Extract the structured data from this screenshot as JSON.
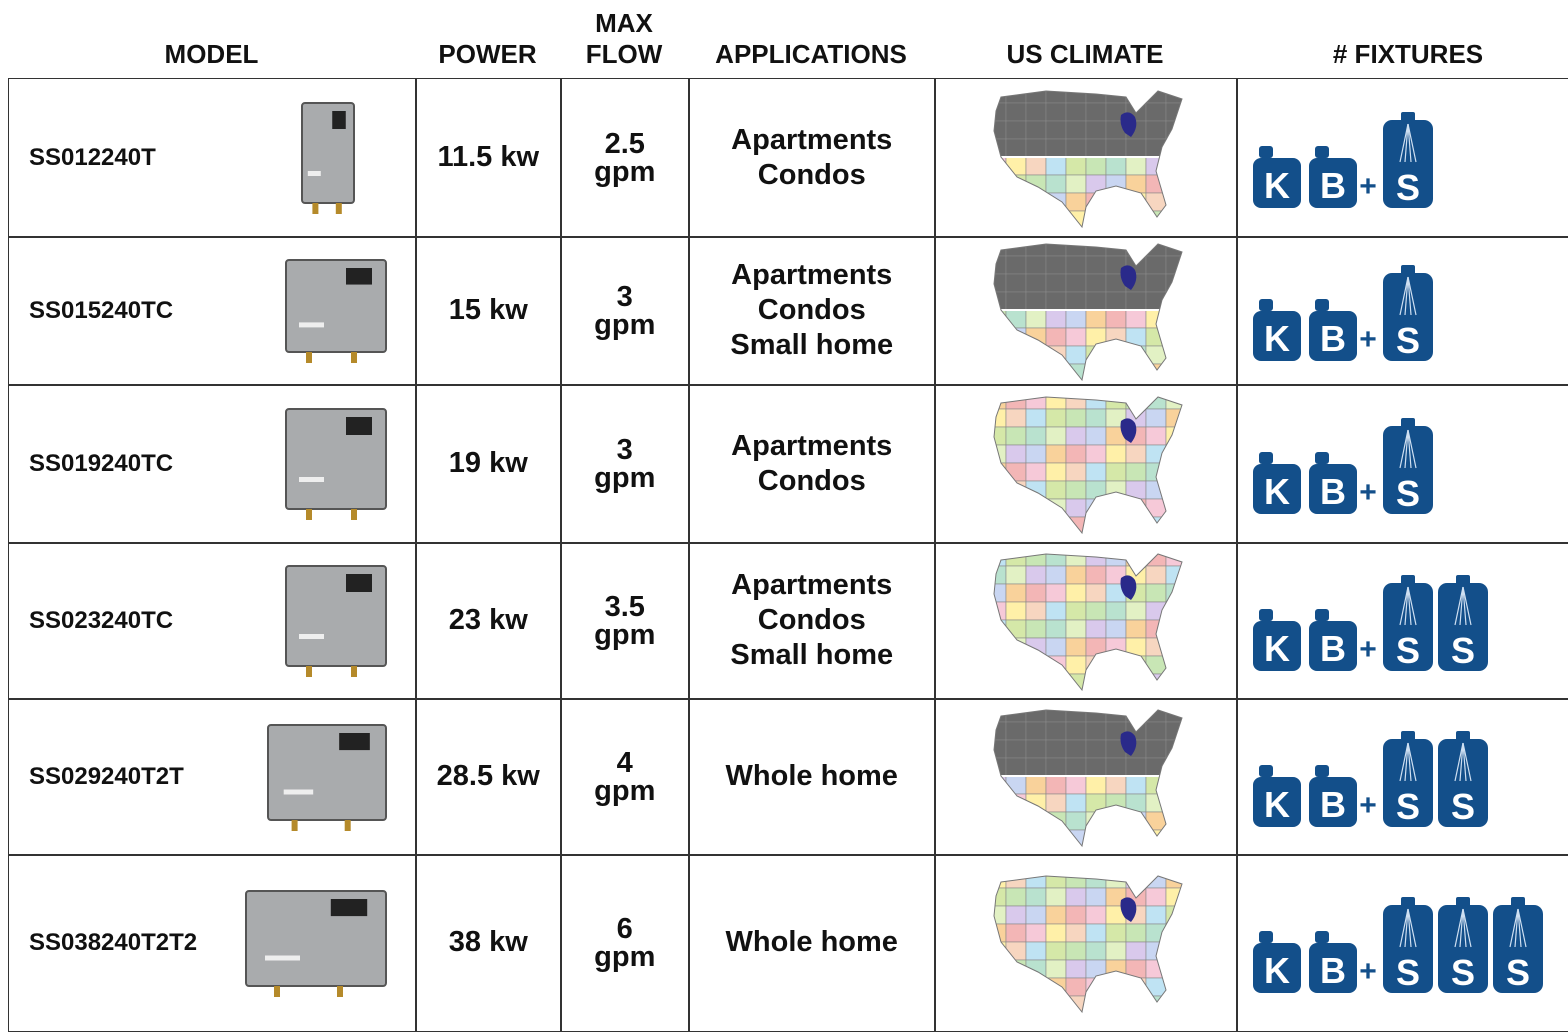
{
  "header": {
    "columns": [
      [
        "MODEL"
      ],
      [
        "POWER"
      ],
      [
        "MAX",
        "FLOW"
      ],
      [
        "APPLICATIONS"
      ],
      [
        "US CLIMATE"
      ],
      [
        "# FIXTURES"
      ]
    ]
  },
  "rows": [
    {
      "model": "SS012240T",
      "power": "11.5 kw",
      "max_flow": [
        "2.5",
        "gpm"
      ],
      "applications": [
        "Apartments",
        "Condos"
      ],
      "fixtures": {
        "icons": [
          "K",
          "B"
        ],
        "plus": "+",
        "showers": [
          "S"
        ]
      }
    },
    {
      "model": "SS015240TC",
      "power": "15 kw",
      "max_flow": [
        "3",
        "gpm"
      ],
      "applications": [
        "Apartments",
        "Condos",
        "Small home"
      ],
      "fixtures": {
        "icons": [
          "K",
          "B"
        ],
        "plus": "+",
        "showers": [
          "S"
        ]
      }
    },
    {
      "model": "SS019240TC",
      "power": "19 kw",
      "max_flow": [
        "3",
        "gpm"
      ],
      "applications": [
        "Apartments",
        "Condos"
      ],
      "fixtures": {
        "icons": [
          "K",
          "B"
        ],
        "plus": "+",
        "showers": [
          "S"
        ]
      }
    },
    {
      "model": "SS023240TC",
      "power": "23 kw",
      "max_flow": [
        "3.5",
        "gpm"
      ],
      "applications": [
        "Apartments",
        "Condos",
        "Small home"
      ],
      "fixtures": {
        "icons": [
          "K",
          "B"
        ],
        "plus": "+",
        "showers": [
          "S",
          "S"
        ]
      }
    },
    {
      "model": "SS029240T2T",
      "power": "28.5 kw",
      "max_flow": [
        "4",
        "gpm"
      ],
      "applications": [
        "Whole home"
      ],
      "fixtures": {
        "icons": [
          "K",
          "B"
        ],
        "plus": "+",
        "showers": [
          "S",
          "S"
        ]
      }
    },
    {
      "model": "SS038240T2T2",
      "power": "38 kw",
      "max_flow": [
        "6",
        "gpm"
      ],
      "applications": [
        "Whole home"
      ],
      "fixtures": {
        "icons": [
          "K",
          "B"
        ],
        "plus": "+",
        "showers": [
          "S",
          "S",
          "S"
        ]
      }
    }
  ]
}
